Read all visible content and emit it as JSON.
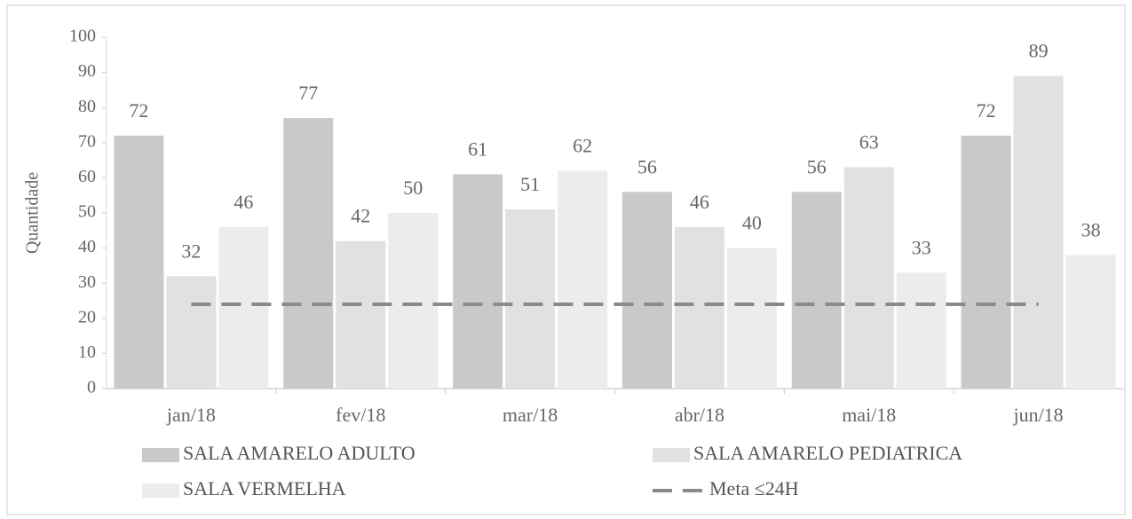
{
  "chart_data": {
    "type": "bar",
    "y_label": "Quantidade",
    "categories": [
      "jan/18",
      "fev/18",
      "mar/18",
      "abr/18",
      "mai/18",
      "jun/18"
    ],
    "series": [
      {
        "name": "SALA AMARELO ADULTO",
        "color": "#c9c9c9",
        "values": [
          72,
          77,
          61,
          56,
          56,
          72
        ]
      },
      {
        "name": "SALA AMARELO PEDIATRICA",
        "color": "#e1e1e1",
        "values": [
          32,
          42,
          51,
          46,
          63,
          89
        ]
      },
      {
        "name": "SALA VERMELHA",
        "color": "#ececec",
        "values": [
          46,
          50,
          62,
          40,
          33,
          38
        ]
      },
      {
        "name": "Meta ≤24H",
        "color": "#8a8a8a",
        "type": "line",
        "style": "dashed",
        "values": [
          24,
          24,
          24,
          24,
          24,
          24
        ]
      }
    ],
    "ylim": [
      0,
      100
    ],
    "yticks": [
      0,
      10,
      20,
      30,
      40,
      50,
      60,
      70,
      80,
      90,
      100
    ]
  }
}
